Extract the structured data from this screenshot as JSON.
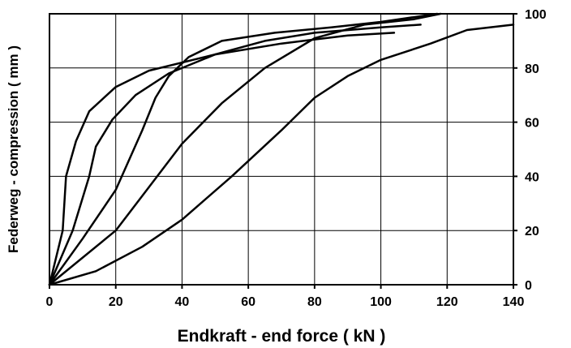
{
  "chart_data": {
    "type": "line",
    "title": "",
    "xlabel": "Endkraft - end force ( kN )",
    "ylabel": "Federweg - compression ( mm )",
    "xlim": [
      0,
      140
    ],
    "ylim": [
      0,
      100
    ],
    "xticks": [
      "0",
      "20",
      "40",
      "60",
      "80",
      "100",
      "120",
      "140"
    ],
    "yticks": [
      "0",
      "20",
      "40",
      "60",
      "80",
      "100"
    ],
    "y_axis_side": "right",
    "grid": true,
    "legend": "none",
    "series": [
      {
        "x": [
          0,
          4,
          5,
          8,
          12,
          20,
          30,
          50,
          70,
          90,
          104
        ],
        "y": [
          0,
          20,
          40,
          53,
          64,
          73,
          79,
          85,
          89,
          92,
          93
        ]
      },
      {
        "x": [
          0,
          7,
          12,
          14,
          19,
          26,
          36,
          50,
          65,
          80,
          100,
          112
        ],
        "y": [
          0,
          20,
          40,
          51,
          61,
          70,
          78,
          85,
          90,
          93,
          95,
          96
        ]
      },
      {
        "x": [
          0,
          10,
          20,
          28,
          32,
          36,
          42,
          52,
          68,
          85,
          100,
          117
        ],
        "y": [
          0,
          17,
          35,
          57,
          69,
          77,
          84,
          90,
          93,
          95,
          97,
          100
        ]
      },
      {
        "x": [
          0,
          20,
          30,
          40,
          52,
          65,
          80,
          95,
          110,
          118
        ],
        "y": [
          0,
          20,
          36,
          52,
          67,
          80,
          91,
          96,
          98,
          100
        ]
      },
      {
        "x": [
          0,
          14,
          28,
          40,
          55,
          70,
          80,
          90,
          100,
          115,
          126,
          140
        ],
        "y": [
          0,
          5,
          14,
          24,
          40,
          57,
          69,
          77,
          83,
          89,
          94,
          96
        ]
      }
    ]
  }
}
